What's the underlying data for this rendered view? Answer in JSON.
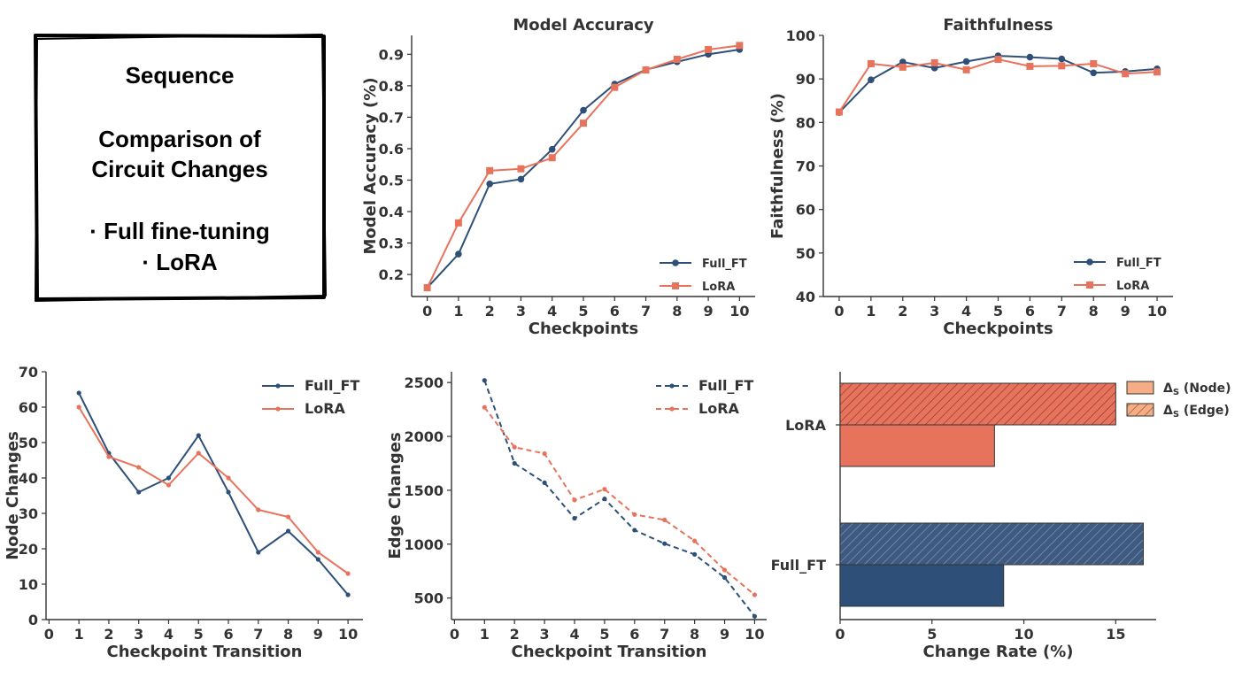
{
  "title_box": {
    "lines": [
      "Sequence",
      "",
      "Comparison of",
      "Circuit Changes",
      "",
      "· Full fine-tuning",
      "· LoRA"
    ]
  },
  "colors": {
    "full_ft": "#2e4f78",
    "lora": "#e8735c",
    "lora_light": "#f5ad86",
    "axis": "#333333"
  },
  "chart_data": [
    {
      "type": "line",
      "title": "Model Accuracy",
      "xlabel": "Checkpoints",
      "ylabel": "Model Accuracy (%)",
      "x": [
        0,
        1,
        2,
        3,
        4,
        5,
        6,
        7,
        8,
        9,
        10
      ],
      "xlim": [
        -0.5,
        10.5
      ],
      "ylim": [
        0.13,
        0.96
      ],
      "yticks": [
        0.2,
        0.3,
        0.4,
        0.5,
        0.6,
        0.7,
        0.8,
        0.9
      ],
      "ytick_labels": [
        "0.2",
        "0.3",
        "0.4",
        "0.5",
        "0.6",
        "0.7",
        "0.8",
        "0.9"
      ],
      "legend_position": "bottom-right",
      "series": [
        {
          "name": "Full_FT",
          "color_key": "full_ft",
          "marker": "circle",
          "dashed": false,
          "values": [
            0.158,
            0.265,
            0.488,
            0.503,
            0.598,
            0.722,
            0.805,
            0.851,
            0.876,
            0.9,
            0.915
          ]
        },
        {
          "name": "LoRA",
          "color_key": "lora",
          "marker": "square",
          "dashed": false,
          "values": [
            0.158,
            0.364,
            0.53,
            0.536,
            0.571,
            0.681,
            0.795,
            0.85,
            0.884,
            0.915,
            0.928
          ]
        }
      ]
    },
    {
      "type": "line",
      "title": "Faithfulness",
      "xlabel": "Checkpoints",
      "ylabel": "Faithfulness (%)",
      "x": [
        0,
        1,
        2,
        3,
        4,
        5,
        6,
        7,
        8,
        9,
        10
      ],
      "xlim": [
        -0.5,
        10.5
      ],
      "ylim": [
        40,
        100
      ],
      "yticks": [
        40,
        50,
        60,
        70,
        80,
        90,
        100
      ],
      "ytick_labels": [
        "40",
        "50",
        "60",
        "70",
        "80",
        "90",
        "100"
      ],
      "legend_position": "bottom-right",
      "series": [
        {
          "name": "Full_FT",
          "color_key": "full_ft",
          "marker": "circle",
          "dashed": false,
          "values": [
            82.3,
            89.8,
            93.9,
            92.5,
            94.0,
            95.3,
            95.0,
            94.6,
            91.4,
            91.7,
            92.3
          ]
        },
        {
          "name": "LoRA",
          "color_key": "lora",
          "marker": "square",
          "dashed": false,
          "values": [
            82.4,
            93.5,
            92.7,
            93.7,
            92.1,
            94.5,
            92.9,
            93.0,
            93.5,
            91.2,
            91.6
          ]
        }
      ]
    },
    {
      "type": "line",
      "title": "",
      "xlabel": "Checkpoint Transition",
      "ylabel": "Node Changes",
      "x": [
        1,
        2,
        3,
        4,
        5,
        6,
        7,
        8,
        9,
        10
      ],
      "xticks": [
        0,
        1,
        2,
        3,
        4,
        5,
        6,
        7,
        8,
        9,
        10
      ],
      "xlim": [
        -0.1,
        10.5
      ],
      "ylim": [
        0,
        70
      ],
      "yticks": [
        0,
        10,
        20,
        30,
        40,
        50,
        60,
        70
      ],
      "ytick_labels": [
        "0",
        "10",
        "20",
        "30",
        "40",
        "50",
        "60",
        "70"
      ],
      "legend_position": "top-right",
      "series": [
        {
          "name": "Full_FT",
          "color_key": "full_ft",
          "marker": "dot",
          "dashed": false,
          "values": [
            64,
            47,
            36,
            40,
            52,
            36,
            19,
            25,
            17,
            7
          ]
        },
        {
          "name": "LoRA",
          "color_key": "lora",
          "marker": "dot",
          "dashed": false,
          "values": [
            60,
            46,
            43,
            38,
            47,
            40,
            31,
            29,
            19,
            13
          ]
        }
      ]
    },
    {
      "type": "line",
      "title": "",
      "xlabel": "Checkpoint Transition",
      "ylabel": "Edge Changes",
      "x": [
        1,
        2,
        3,
        4,
        5,
        6,
        7,
        8,
        9,
        10
      ],
      "xticks": [
        0,
        1,
        2,
        3,
        4,
        5,
        6,
        7,
        8,
        9,
        10
      ],
      "xlim": [
        -0.1,
        10.4
      ],
      "ylim": [
        300,
        2600
      ],
      "yticks": [
        500,
        1000,
        1500,
        2000,
        2500
      ],
      "ytick_labels": [
        "500",
        "1000",
        "1500",
        "2000",
        "2500"
      ],
      "legend_position": "top-right",
      "series": [
        {
          "name": "Full_FT",
          "color_key": "full_ft",
          "marker": "dot",
          "dashed": true,
          "values": [
            2520,
            1750,
            1570,
            1240,
            1420,
            1130,
            1005,
            905,
            690,
            330
          ]
        },
        {
          "name": "LoRA",
          "color_key": "lora",
          "marker": "dot",
          "dashed": true,
          "values": [
            2270,
            1900,
            1840,
            1410,
            1510,
            1275,
            1225,
            1030,
            760,
            530
          ]
        }
      ]
    },
    {
      "type": "bar",
      "orientation": "horizontal",
      "title": "",
      "xlabel": "Change Rate (%)",
      "ylabel": "",
      "categories": [
        "LoRA",
        "Full_FT"
      ],
      "xlim": [
        0,
        17.2
      ],
      "xticks": [
        0,
        5,
        10,
        15
      ],
      "xtick_labels": [
        "0",
        "5",
        "10",
        "15"
      ],
      "legend_position": "top-right",
      "series": [
        {
          "name": "ΔS (Node)",
          "legend_main": "Δ",
          "legend_sub": "S",
          "legend_rest": " (Node)",
          "hatch": false,
          "values": [
            8.4,
            8.9
          ]
        },
        {
          "name": "ΔS (Edge)",
          "legend_main": "Δ",
          "legend_sub": "S",
          "legend_rest": " (Edge)",
          "hatch": true,
          "values": [
            15.0,
            16.5
          ]
        }
      ]
    }
  ]
}
